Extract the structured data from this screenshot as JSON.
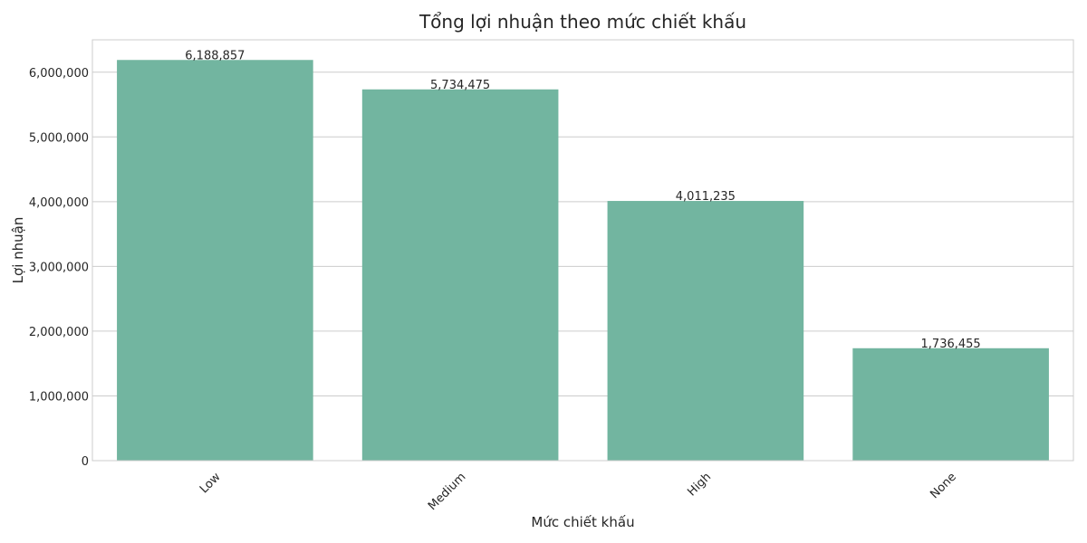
{
  "chart_data": {
    "type": "bar",
    "title": "Tổng lợi nhuận theo mức chiết khấu",
    "xlabel": "Mức chiết khấu",
    "ylabel": "Lợi nhuận",
    "categories": [
      "Low",
      "Medium",
      "High",
      "None"
    ],
    "values": [
      6188857,
      5734475,
      4011235,
      1736455
    ],
    "data_labels": [
      "6,188,857",
      "5,734,475",
      "4,011,235",
      "1,736,455"
    ],
    "ylim": [
      0,
      6500000
    ],
    "yticks": [
      0,
      1000000,
      2000000,
      3000000,
      4000000,
      5000000,
      6000000
    ],
    "ytick_labels": [
      "0",
      "1,000,000",
      "2,000,000",
      "3,000,000",
      "4,000,000",
      "5,000,000",
      "6,000,000"
    ],
    "grid": true,
    "bar_color": "#72b5a0",
    "grid_color": "#cccccc",
    "x_tick_rotation_deg": 45
  }
}
